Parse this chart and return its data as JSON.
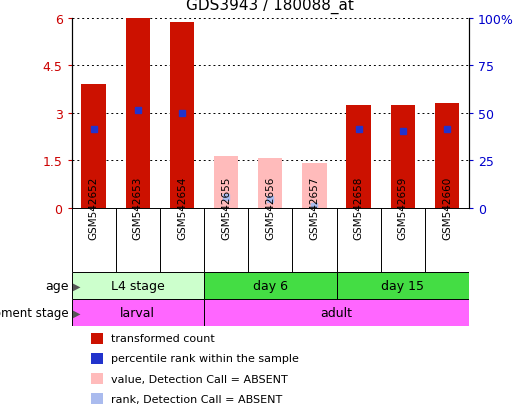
{
  "title": "GDS3943 / 180088_at",
  "samples": [
    "GSM542652",
    "GSM542653",
    "GSM542654",
    "GSM542655",
    "GSM542656",
    "GSM542657",
    "GSM542658",
    "GSM542659",
    "GSM542660"
  ],
  "transformed_count": [
    3.9,
    6.0,
    5.85,
    0.0,
    0.0,
    0.0,
    3.25,
    3.25,
    3.3
  ],
  "percentile_rank": [
    2.5,
    3.08,
    3.0,
    0.0,
    0.0,
    0.0,
    2.5,
    2.42,
    2.5
  ],
  "absent_value": [
    0.0,
    0.0,
    0.0,
    1.65,
    1.57,
    1.43,
    0.0,
    0.0,
    0.0
  ],
  "absent_rank": [
    0.0,
    0.0,
    0.0,
    0.35,
    0.28,
    0.08,
    0.0,
    0.0,
    0.0
  ],
  "absent": [
    false,
    false,
    false,
    true,
    true,
    true,
    false,
    false,
    false
  ],
  "ylim": [
    0,
    6
  ],
  "yticks": [
    0,
    1.5,
    3.0,
    4.5,
    6.0
  ],
  "ytick_labels": [
    "0",
    "1.5",
    "3",
    "4.5",
    "6"
  ],
  "y2ticks": [
    0,
    1.5,
    3.0,
    4.5,
    6.0
  ],
  "y2tick_labels": [
    "0",
    "25",
    "50",
    "75",
    "100%"
  ],
  "bar_color_present": "#cc1100",
  "bar_color_absent": "#ffbbbb",
  "rank_color_present": "#2233cc",
  "rank_color_absent": "#aabbee",
  "bar_width": 0.55,
  "age_groups": [
    {
      "label": "L4 stage",
      "start": 0,
      "end": 3,
      "color": "#ccffcc"
    },
    {
      "label": "day 6",
      "start": 3,
      "end": 6,
      "color": "#44dd44"
    },
    {
      "label": "day 15",
      "start": 6,
      "end": 9,
      "color": "#44dd44"
    }
  ],
  "dev_groups": [
    {
      "label": "larval",
      "start": 0,
      "end": 3,
      "color": "#ff66ff"
    },
    {
      "label": "adult",
      "start": 3,
      "end": 9,
      "color": "#ff66ff"
    }
  ],
  "legend_items": [
    {
      "label": "transformed count",
      "color": "#cc1100"
    },
    {
      "label": "percentile rank within the sample",
      "color": "#2233cc"
    },
    {
      "label": "value, Detection Call = ABSENT",
      "color": "#ffbbbb"
    },
    {
      "label": "rank, Detection Call = ABSENT",
      "color": "#aabbee"
    }
  ],
  "xlabel_age": "age",
  "xlabel_dev": "development stage",
  "bg_color": "#ffffff",
  "tick_color_left": "#cc0000",
  "tick_color_right": "#0000cc",
  "rank_marker_size": 5,
  "xtick_bg": "#cccccc"
}
